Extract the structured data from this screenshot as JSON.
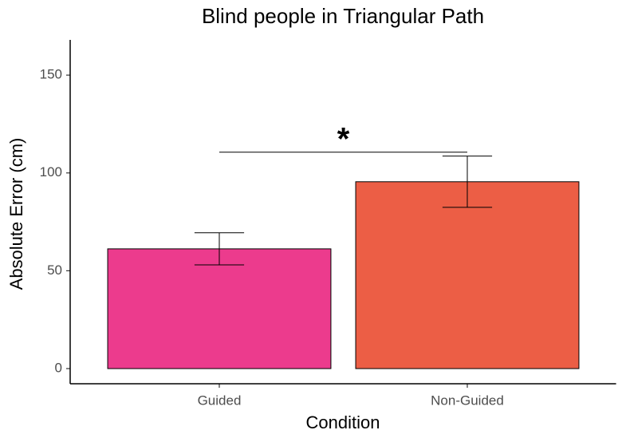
{
  "chart_data": {
    "type": "bar",
    "title": "Blind people in Triangular Path",
    "x_label": "Condition",
    "y_label": "Absolute Error (cm)",
    "categories": [
      "Guided",
      "Non-Guided"
    ],
    "values": [
      61.2,
      95.5
    ],
    "errors": [
      8.2,
      13.1
    ],
    "colors": [
      "#ec3b8d",
      "#ec5e45"
    ],
    "ylim": [
      -7.75,
      168
    ],
    "yticks": [
      0,
      50,
      100,
      150
    ],
    "significance": {
      "label": "*",
      "y": 110.6
    },
    "grid": false
  }
}
